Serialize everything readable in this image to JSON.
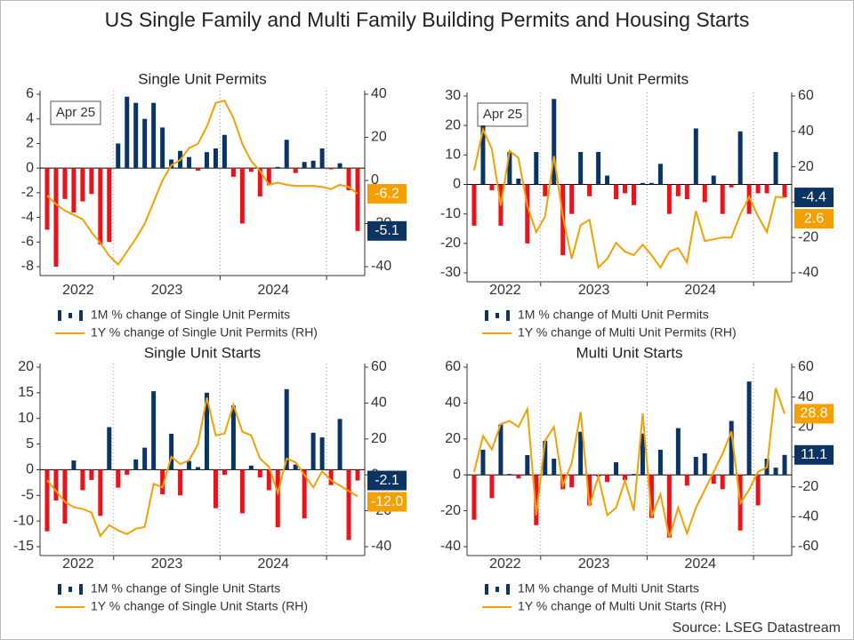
{
  "title": "US Single Family and Multi Family Building Permits and Housing Starts",
  "source": "Source: LSEG Datastream",
  "chart_data": [
    {
      "type": "combo",
      "title": "Single Unit Permits",
      "annotation": "Apr 25",
      "categories": [
        null,
        null,
        null,
        null,
        null,
        null,
        null,
        null,
        null,
        null,
        null,
        null,
        null,
        null,
        null,
        null,
        null,
        null,
        null,
        null,
        null,
        null,
        null,
        null,
        null,
        null,
        null,
        null,
        null,
        null,
        null,
        null,
        null,
        null,
        null,
        null
      ],
      "xgroups": [
        {
          "label": "2022",
          "count": 8
        },
        {
          "label": "2023",
          "count": 12
        },
        {
          "label": "2024",
          "count": 12
        }
      ],
      "ylim": [
        -8,
        6
      ],
      "yticks": [
        -8,
        -6,
        -4,
        -2,
        0,
        2,
        4,
        6
      ],
      "y2lim": [
        -40,
        40
      ],
      "y2ticks": [
        -40,
        -20,
        0,
        20,
        40
      ],
      "series": [
        {
          "name": "1M % change of Single Unit Permits",
          "type": "bar",
          "color": "#0b3463",
          "negative_color": "#e8141b",
          "values": [
            -5.0,
            -8.0,
            -2.5,
            -3.6,
            -2.7,
            -2.1,
            -6.2,
            -6.0,
            2.0,
            5.8,
            5.3,
            4.0,
            5.3,
            3.3,
            0.7,
            1.4,
            0.9,
            -0.2,
            1.3,
            1.6,
            2.7,
            -0.7,
            -4.5,
            -0.3,
            -2.3,
            -1.4,
            0.1,
            2.3,
            -0.4,
            0.5,
            0.6,
            1.6,
            -0.1,
            0.4,
            -1.8,
            -5.1
          ]
        },
        {
          "name": "1Y % change of Single Unit Permits (RH)",
          "type": "line",
          "axis": "y2",
          "color": "#f5a000",
          "values": [
            -7,
            -11,
            -14,
            -16,
            -18,
            -24,
            -29,
            -35,
            -39,
            -33,
            -27,
            -20,
            -10,
            0,
            7,
            9.5,
            15,
            17,
            25,
            36,
            37,
            29,
            17,
            9,
            4.5,
            -2,
            -1,
            -2,
            -2.5,
            -2.5,
            -2.5,
            -3,
            -4,
            -2,
            -3,
            -6.2
          ]
        }
      ]
    },
    {
      "type": "combo",
      "title": "Multi Unit Permits",
      "annotation": "Apr 25",
      "categories": [
        null,
        null,
        null,
        null,
        null,
        null,
        null,
        null,
        null,
        null,
        null,
        null,
        null,
        null,
        null,
        null,
        null,
        null,
        null,
        null,
        null,
        null,
        null,
        null,
        null,
        null,
        null,
        null,
        null,
        null,
        null,
        null,
        null,
        null,
        null,
        null
      ],
      "xgroups": [
        {
          "label": "2022",
          "count": 8
        },
        {
          "label": "2023",
          "count": 12
        },
        {
          "label": "2024",
          "count": 12
        }
      ],
      "ylim": [
        -30,
        30
      ],
      "yticks": [
        -30,
        -20,
        -10,
        0,
        10,
        20,
        30
      ],
      "y2lim": [
        -40,
        60
      ],
      "y2ticks": [
        -40,
        -20,
        0,
        20,
        40,
        60
      ],
      "series": [
        {
          "name": "1M % change of Multi Unit Permits",
          "type": "bar",
          "color": "#0b3463",
          "negative_color": "#e8141b",
          "values": [
            -14,
            20,
            -2,
            -14,
            11,
            2,
            -20,
            11,
            -4,
            29,
            -24,
            -10,
            11,
            -4,
            11,
            3,
            -5,
            -3,
            -7,
            0.5,
            0.5,
            7,
            -10,
            -4,
            -5,
            19,
            -6,
            3,
            -10,
            -1,
            18,
            -10,
            -3,
            -3,
            11,
            -4.4
          ]
        },
        {
          "name": "1Y % change of Multi Unit Permits (RH)",
          "type": "line",
          "axis": "y2",
          "color": "#f5a000",
          "values": [
            18,
            41,
            30,
            -2,
            29,
            25,
            -2,
            -17,
            -8,
            26,
            -8,
            -32,
            -13,
            -10,
            -37,
            -32,
            -23,
            -28,
            -30,
            -24,
            -30,
            -37,
            -28,
            -26,
            -34,
            -5,
            -22,
            -21,
            -20,
            -20,
            -7,
            3,
            -8,
            -17,
            3,
            2.6
          ]
        }
      ]
    },
    {
      "type": "combo",
      "title": "Single Unit Starts",
      "categories": [
        null,
        null,
        null,
        null,
        null,
        null,
        null,
        null,
        null,
        null,
        null,
        null,
        null,
        null,
        null,
        null,
        null,
        null,
        null,
        null,
        null,
        null,
        null,
        null,
        null,
        null,
        null,
        null,
        null,
        null,
        null,
        null,
        null,
        null,
        null,
        null
      ],
      "xgroups": [
        {
          "label": "2022",
          "count": 8
        },
        {
          "label": "2023",
          "count": 12
        },
        {
          "label": "2024",
          "count": 12
        }
      ],
      "ylim": [
        -15,
        20
      ],
      "yticks": [
        -15,
        -10,
        -5,
        0,
        5,
        10,
        15,
        20
      ],
      "y2lim": [
        -40,
        60
      ],
      "y2ticks": [
        -40,
        -20,
        0,
        20,
        40,
        60
      ],
      "series": [
        {
          "name": "1M % change of Single Unit Starts",
          "type": "bar",
          "color": "#0b3463",
          "negative_color": "#e8141b",
          "values": [
            -12,
            -6,
            -10.5,
            1.8,
            -4,
            -2,
            -9,
            8.3,
            -3.5,
            -1,
            2,
            4.3,
            15.3,
            -4.8,
            7,
            -5,
            1.7,
            0.5,
            15,
            -7.5,
            -1,
            12.5,
            -8.5,
            0.8,
            -1.5,
            -4,
            -11.2,
            15.7,
            1,
            -9.5,
            7.2,
            6.3,
            -3,
            9.9,
            -13.7,
            -2.1
          ]
        },
        {
          "name": "1Y % change of Single Unit Starts (RH)",
          "type": "line",
          "axis": "y2",
          "color": "#f5a000",
          "values": [
            -3,
            -9,
            -15,
            -18,
            -19,
            -21,
            -34,
            -28,
            -31,
            -33,
            -30,
            -29,
            -5,
            -7,
            10,
            6,
            8,
            17,
            43,
            22,
            23,
            39,
            24,
            22,
            9,
            4.5,
            -10,
            9,
            7,
            0,
            -7,
            2,
            -3,
            -6,
            -9,
            -12
          ],
          "value_labels": [
            null,
            null,
            null,
            null,
            null,
            null,
            null,
            null,
            null,
            null,
            null,
            null,
            null,
            null,
            null,
            null,
            null,
            null,
            null,
            null,
            null,
            null,
            null,
            null,
            null,
            null,
            null,
            null,
            null,
            null,
            null,
            null,
            null,
            null,
            null,
            "-12.0"
          ]
        }
      ]
    },
    {
      "type": "combo",
      "title": "Multi Unit Starts",
      "categories": [
        null,
        null,
        null,
        null,
        null,
        null,
        null,
        null,
        null,
        null,
        null,
        null,
        null,
        null,
        null,
        null,
        null,
        null,
        null,
        null,
        null,
        null,
        null,
        null,
        null,
        null,
        null,
        null,
        null,
        null,
        null,
        null,
        null,
        null,
        null,
        null
      ],
      "xgroups": [
        {
          "label": "2022",
          "count": 8
        },
        {
          "label": "2023",
          "count": 12
        },
        {
          "label": "2024",
          "count": 12
        }
      ],
      "ylim": [
        -40,
        60
      ],
      "yticks": [
        -40,
        -20,
        0,
        20,
        40,
        60
      ],
      "y2lim": [
        -60,
        60
      ],
      "y2ticks": [
        -60,
        -40,
        -20,
        0,
        20,
        40,
        60
      ],
      "series": [
        {
          "name": "1M % change of Multi Unit Starts",
          "type": "bar",
          "color": "#0b3463",
          "negative_color": "#e8141b",
          "values": [
            -25,
            14,
            -13,
            28,
            0.5,
            -2,
            11,
            -28,
            19,
            9,
            -8,
            -7,
            24,
            -17,
            -1,
            -4,
            7,
            -3,
            0.5,
            23,
            -24,
            14,
            -35,
            26,
            -6,
            10,
            12,
            -5,
            -8,
            30,
            -31,
            52,
            -17,
            9,
            4,
            11.1
          ]
        },
        {
          "name": "1Y % change of Multi Unit Starts (RH)",
          "type": "line",
          "axis": "y2",
          "color": "#f5a000",
          "values": [
            -10,
            14,
            5,
            22,
            24,
            20,
            32,
            -39,
            11,
            20,
            -19,
            -4,
            30,
            -33,
            -13,
            -39,
            -34,
            -16,
            -36,
            29,
            -40,
            -25,
            -54,
            -34,
            -51,
            -34,
            -22,
            -10,
            2,
            17,
            -31,
            -22,
            -10,
            -7,
            46,
            28.8
          ]
        }
      ]
    }
  ]
}
